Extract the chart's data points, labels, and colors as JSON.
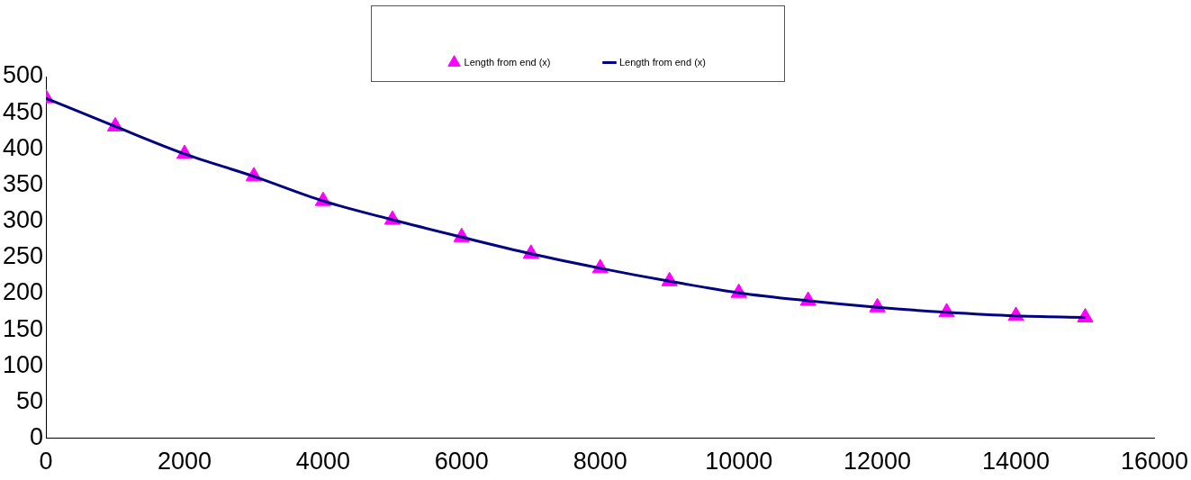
{
  "chart_data": {
    "type": "scatter",
    "x": [
      0,
      1000,
      2000,
      3000,
      4000,
      5000,
      6000,
      7000,
      8000,
      9000,
      10000,
      11000,
      12000,
      13000,
      14000,
      15000
    ],
    "series": [
      {
        "name": "Length from end (x)",
        "color": "#ff00ff",
        "marker": "triangle",
        "values": [
          470,
          431,
          393,
          362,
          328,
          302,
          278,
          255,
          235,
          217,
          201,
          190,
          181,
          174,
          169,
          167
        ]
      },
      {
        "name": "Length from end (x)",
        "type": "line",
        "color": "#000080",
        "marker": "none",
        "line_style": "solid",
        "values": [
          470,
          431,
          393,
          362,
          328,
          302,
          278,
          255,
          235,
          217,
          201,
          190,
          181,
          174,
          169,
          167
        ]
      }
    ],
    "xlim": [
      0,
      16000
    ],
    "xticks": [
      0,
      2000,
      4000,
      6000,
      8000,
      10000,
      12000,
      14000,
      16000
    ],
    "ylim": [
      0,
      500
    ],
    "yticks": [
      0,
      50,
      100,
      150,
      200,
      250,
      300,
      350,
      400,
      450,
      500
    ],
    "grid": false,
    "legend": "top"
  }
}
